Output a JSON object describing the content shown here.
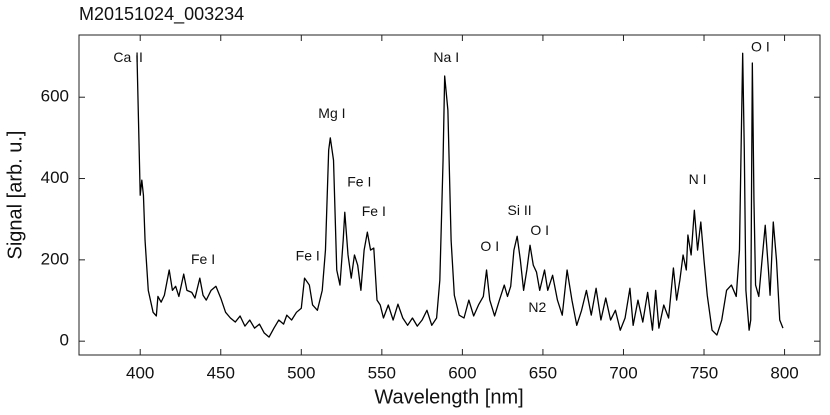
{
  "chart_data": {
    "type": "line",
    "title": "M20151024_003234",
    "x_label": "Wavelength [nm]",
    "y_label": "Signal [arb. u.]",
    "x": [
      398,
      400,
      401,
      402,
      403,
      405,
      408,
      410,
      411,
      413,
      415,
      418,
      420,
      422,
      424,
      427,
      429,
      432,
      434,
      437,
      439,
      441,
      444,
      447,
      450,
      453,
      456,
      459,
      462,
      465,
      468,
      471,
      474,
      477,
      480,
      483,
      486,
      489,
      491,
      494,
      497,
      500,
      502,
      505,
      507,
      510,
      513,
      515,
      517,
      518,
      520,
      522,
      524,
      526,
      527,
      529,
      531,
      533,
      535,
      537,
      539,
      541,
      543,
      545,
      547,
      549,
      551,
      554,
      557,
      560,
      563,
      566,
      569,
      572,
      575,
      578,
      581,
      584,
      586,
      588,
      589,
      591,
      593,
      595,
      598,
      601,
      604,
      607,
      610,
      613,
      615,
      617,
      620,
      623,
      626,
      628,
      630,
      632,
      634,
      636,
      638,
      640,
      642,
      644,
      646,
      648,
      651,
      653,
      656,
      659,
      662,
      665,
      668,
      671,
      674,
      677,
      680,
      683,
      686,
      689,
      692,
      695,
      698,
      701,
      704,
      706,
      709,
      712,
      715,
      718,
      720,
      722,
      725,
      728,
      731,
      733,
      735,
      737,
      739,
      740,
      742,
      744,
      746,
      748,
      750,
      752,
      755,
      758,
      761,
      764,
      767,
      770,
      772,
      773,
      774,
      775,
      776,
      778,
      779,
      780,
      781,
      782,
      784,
      786,
      788,
      790,
      791,
      793,
      795,
      797,
      799
    ],
    "series": [
      {
        "color": "#000000",
        "values": [
          703,
          359,
          396,
          359,
          248,
          125,
          71,
          62,
          110,
          96,
          113,
          175,
          125,
          135,
          110,
          165,
          125,
          120,
          106,
          155,
          113,
          101,
          125,
          135,
          106,
          71,
          57,
          47,
          62,
          37,
          52,
          32,
          42,
          20,
          10,
          32,
          52,
          42,
          64,
          52,
          71,
          81,
          155,
          138,
          89,
          76,
          125,
          224,
          470,
          500,
          445,
          175,
          138,
          248,
          317,
          212,
          155,
          212,
          187,
          125,
          224,
          268,
          224,
          229,
          101,
          89,
          57,
          89,
          52,
          91,
          57,
          39,
          57,
          37,
          52,
          76,
          39,
          57,
          150,
          445,
          652,
          568,
          248,
          113,
          64,
          57,
          101,
          62,
          89,
          110,
          175,
          101,
          62,
          101,
          138,
          110,
          135,
          224,
          258,
          199,
          125,
          175,
          236,
          187,
          170,
          125,
          175,
          125,
          162,
          101,
          64,
          175,
          101,
          39,
          76,
          125,
          64,
          130,
          52,
          106,
          52,
          76,
          27,
          57,
          130,
          39,
          101,
          47,
          120,
          27,
          125,
          32,
          89,
          57,
          180,
          101,
          150,
          212,
          175,
          261,
          212,
          322,
          224,
          293,
          199,
          113,
          27,
          15,
          52,
          125,
          138,
          110,
          224,
          470,
          708,
          470,
          125,
          27,
          52,
          684,
          347,
          138,
          110,
          199,
          285,
          175,
          113,
          293,
          199,
          52,
          32
        ]
      }
    ],
    "annotations": [
      "Ca II",
      "Fe I",
      "Mg I",
      "Fe I",
      "Fe I",
      "Fe I",
      "Na I",
      "O I",
      "Si II",
      "O I",
      "N2",
      "N I",
      "O I"
    ],
    "xlim": [
      362,
      822
    ],
    "ylim": [
      -34,
      753
    ],
    "xticks": [
      400,
      450,
      500,
      550,
      600,
      650,
      700,
      750,
      800
    ],
    "yticks": [
      0,
      200,
      400,
      600
    ]
  }
}
